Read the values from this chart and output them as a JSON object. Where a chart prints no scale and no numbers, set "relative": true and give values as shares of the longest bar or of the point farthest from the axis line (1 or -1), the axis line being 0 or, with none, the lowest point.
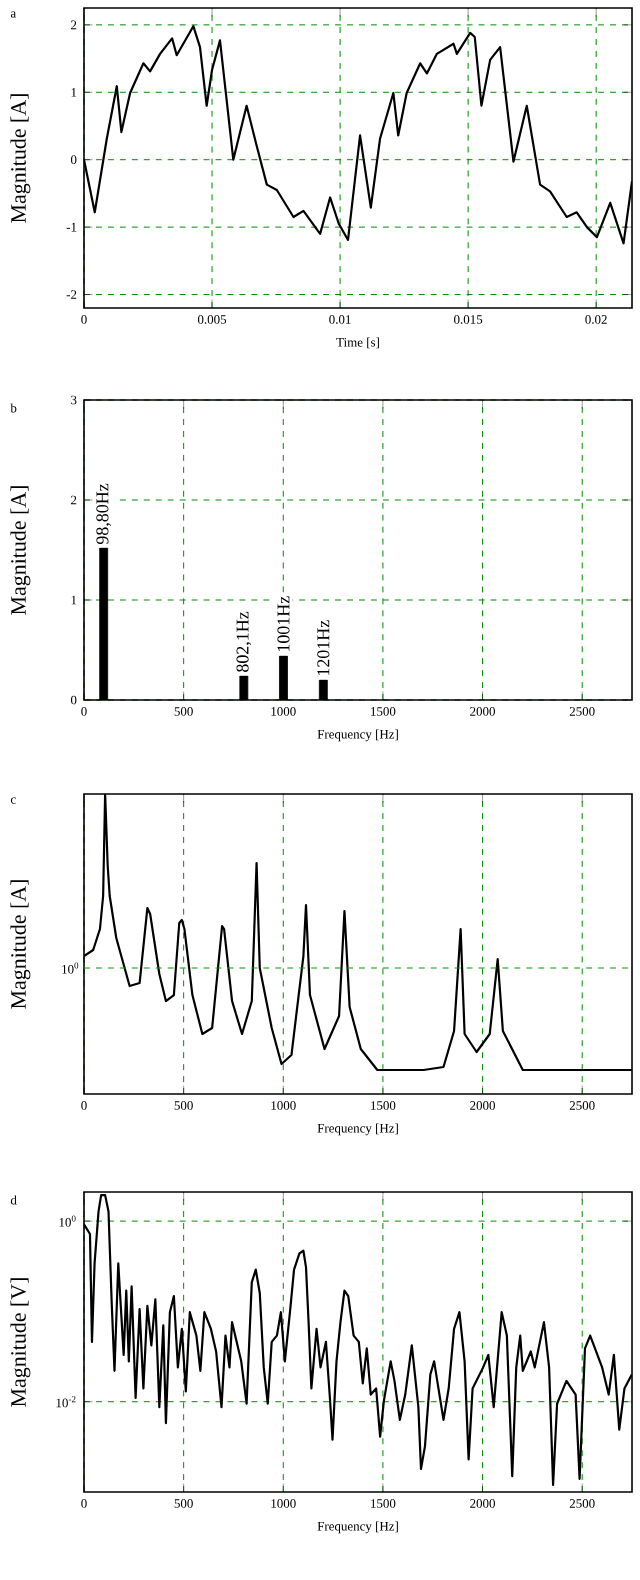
{
  "chart_data": [
    {
      "type": "line",
      "xlabel": "Time [s]",
      "ylabel": "Magnitude [A]",
      "annotations": [
        "a"
      ],
      "grid": true,
      "xlim": [
        0,
        0.0214
      ],
      "ylim": [
        -2.2,
        2.25
      ],
      "xticks": [
        0,
        0.005,
        0.01,
        0.015,
        0.02
      ],
      "yticks": [
        -2,
        -1,
        0,
        1,
        2
      ],
      "series": [
        {
          "color": "#000000",
          "x": [
            0,
            0.00042,
            0.00089,
            0.00128,
            0.00146,
            0.0018,
            0.00232,
            0.00258,
            0.00297,
            0.00344,
            0.00362,
            0.00427,
            0.00453,
            0.00479,
            0.005,
            0.00531,
            0.00583,
            0.00635,
            0.00674,
            0.00714,
            0.00753,
            0.00818,
            0.00857,
            0.00922,
            0.00961,
            0.00995,
            0.01031,
            0.01078,
            0.0112,
            0.01156,
            0.01208,
            0.01227,
            0.0126,
            0.01313,
            0.01339,
            0.01378,
            0.01443,
            0.01456,
            0.01508,
            0.01526,
            0.01552,
            0.01586,
            0.01625,
            0.01677,
            0.01729,
            0.01781,
            0.0182,
            0.01885,
            0.01924,
            0.01964,
            0.02003,
            0.02055,
            0.02107,
            0.0214
          ],
          "values": [
            0,
            -0.78,
            0.31,
            1.09,
            0.41,
            0.99,
            1.43,
            1.31,
            1.57,
            1.8,
            1.55,
            1.98,
            1.67,
            0.8,
            1.33,
            1.77,
            0,
            0.8,
            0.21,
            -0.37,
            -0.45,
            -0.85,
            -0.76,
            -1.1,
            -0.56,
            -0.95,
            -1.19,
            0.36,
            -0.71,
            0.31,
            0.99,
            0.36,
            0.99,
            1.43,
            1.28,
            1.57,
            1.72,
            1.57,
            1.88,
            1.82,
            0.8,
            1.48,
            1.67,
            -0.03,
            0.8,
            -0.37,
            -0.47,
            -0.85,
            -0.78,
            -1,
            -1.15,
            -0.64,
            -1.24,
            -0.32
          ]
        }
      ]
    },
    {
      "type": "bar",
      "xlabel": "Frequency [Hz]",
      "ylabel": "Magnitude [A]",
      "grid": true,
      "annotations": [
        "b",
        {
          "text": "98,80Hz",
          "x": 98.8,
          "y": 1.52
        },
        {
          "text": "802,1Hz",
          "x": 802.1,
          "y": 0.24
        },
        {
          "text": "1001Hz",
          "x": 1001,
          "y": 0.44
        },
        {
          "text": "1201Hz",
          "x": 1201,
          "y": 0.2
        }
      ],
      "xlim": [
        0,
        2750
      ],
      "ylim": [
        0,
        3
      ],
      "xticks": [
        0,
        500,
        1000,
        1500,
        2000,
        2500
      ],
      "yticks": [
        0,
        1,
        2,
        3
      ],
      "x": [
        98.8,
        802.1,
        1001,
        1201
      ],
      "values": [
        1.52,
        0.24,
        0.44,
        0.2
      ],
      "color": "#000000"
    },
    {
      "type": "line",
      "xlabel": "Frequency [Hz]",
      "ylabel": "Magnitude [A]",
      "annotations": [
        "c"
      ],
      "grid": "x",
      "relative": true,
      "xlim": [
        0,
        2750
      ],
      "xticks": [
        0,
        500,
        1000,
        1500,
        2000,
        2500
      ],
      "ref_lines": [
        {
          "axis": "y",
          "value": 0.42,
          "label": "10$^{0}$",
          "color": "#00a000",
          "line_style": "dashed"
        }
      ],
      "series": [
        {
          "color": "#000000",
          "x": [
            0,
            46,
            80,
            96,
            106,
            119,
            129,
            162,
            229,
            279,
            318,
            332,
            378,
            411,
            451,
            478,
            491,
            504,
            544,
            594,
            643,
            693,
            703,
            743,
            793,
            842,
            866,
            882,
            942,
            991,
            1041,
            1101,
            1114,
            1134,
            1207,
            1280,
            1307,
            1333,
            1389,
            1472,
            1572,
            1704,
            1804,
            1857,
            1890,
            1910,
            1970,
            2036,
            2076,
            2102,
            2202,
            2749
          ],
          "values": [
            0.46,
            0.48,
            0.55,
            0.66,
            1,
            0.76,
            0.66,
            0.52,
            0.36,
            0.37,
            0.62,
            0.6,
            0.4,
            0.31,
            0.33,
            0.57,
            0.58,
            0.55,
            0.33,
            0.2,
            0.22,
            0.56,
            0.55,
            0.31,
            0.2,
            0.31,
            0.77,
            0.42,
            0.22,
            0.1,
            0.13,
            0.46,
            0.63,
            0.33,
            0.15,
            0.26,
            0.61,
            0.29,
            0.15,
            0.08,
            0.08,
            0.08,
            0.09,
            0.21,
            0.55,
            0.2,
            0.14,
            0.2,
            0.45,
            0.21,
            0.08,
            0.08
          ]
        }
      ]
    },
    {
      "type": "line",
      "xlabel": "Frequency [Hz]",
      "ylabel": "Magnitude [V]",
      "annotations": [
        "d"
      ],
      "grid": true,
      "log": true,
      "xlim": [
        0,
        2750
      ],
      "ylim": [
        0.001,
        2.1
      ],
      "xticks": [
        0,
        500,
        1000,
        1500,
        2000,
        2500
      ],
      "yticks": [
        {
          "value": 0.01,
          "label": "10$^{-2}$"
        },
        {
          "value": 1,
          "label": "10$^{0}$"
        }
      ],
      "series": [
        {
          "color": "#000000",
          "x": [
            0,
            30,
            40,
            53,
            73,
            86,
            106,
            123,
            139,
            153,
            172,
            199,
            212,
            225,
            239,
            259,
            279,
            298,
            318,
            338,
            358,
            378,
            398,
            411,
            431,
            451,
            471,
            491,
            511,
            531,
            564,
            584,
            604,
            637,
            663,
            690,
            710,
            730,
            743,
            789,
            816,
            842,
            862,
            882,
            902,
            922,
            942,
            968,
            988,
            1008,
            1035,
            1054,
            1081,
            1101,
            1114,
            1127,
            1141,
            1167,
            1187,
            1214,
            1234,
            1247,
            1267,
            1287,
            1307,
            1326,
            1353,
            1379,
            1399,
            1419,
            1439,
            1466,
            1486,
            1505,
            1539,
            1558,
            1585,
            1612,
            1645,
            1678,
            1691,
            1711,
            1738,
            1757,
            1804,
            1830,
            1857,
            1884,
            1910,
            1930,
            1950,
            2003,
            2029,
            2056,
            2096,
            2122,
            2149,
            2169,
            2189,
            2202,
            2242,
            2262,
            2308,
            2334,
            2354,
            2374,
            2421,
            2467,
            2487,
            2514,
            2540,
            2600,
            2633,
            2659,
            2686,
            2712,
            2749
          ],
          "values": [
            0.92,
            0.72,
            0.046,
            0.34,
            1.28,
            1.94,
            1.94,
            1.28,
            0.125,
            0.022,
            0.34,
            0.033,
            0.17,
            0.028,
            0.19,
            0.011,
            0.106,
            0.014,
            0.115,
            0.042,
            0.136,
            0.0087,
            0.07,
            0.0058,
            0.098,
            0.148,
            0.024,
            0.064,
            0.013,
            0.098,
            0.054,
            0.022,
            0.098,
            0.064,
            0.036,
            0.0087,
            0.054,
            0.024,
            0.076,
            0.028,
            0.0095,
            0.21,
            0.29,
            0.16,
            0.024,
            0.0095,
            0.046,
            0.054,
            0.098,
            0.028,
            0.106,
            0.29,
            0.44,
            0.47,
            0.31,
            0.076,
            0.014,
            0.064,
            0.024,
            0.046,
            0.011,
            0.0038,
            0.028,
            0.076,
            0.17,
            0.148,
            0.054,
            0.046,
            0.016,
            0.039,
            0.012,
            0.014,
            0.0041,
            0.0103,
            0.028,
            0.017,
            0.0063,
            0.012,
            0.042,
            0.0087,
            0.0018,
            0.0032,
            0.02,
            0.028,
            0.0063,
            0.014,
            0.064,
            0.098,
            0.028,
            0.0023,
            0.014,
            0.024,
            0.033,
            0.0087,
            0.098,
            0.054,
            0.0015,
            0.024,
            0.054,
            0.022,
            0.036,
            0.024,
            0.076,
            0.024,
            0.0012,
            0.0095,
            0.017,
            0.012,
            0.0014,
            0.039,
            0.054,
            0.024,
            0.012,
            0.033,
            0.0049,
            0.014,
            0.02
          ]
        }
      ]
    }
  ]
}
